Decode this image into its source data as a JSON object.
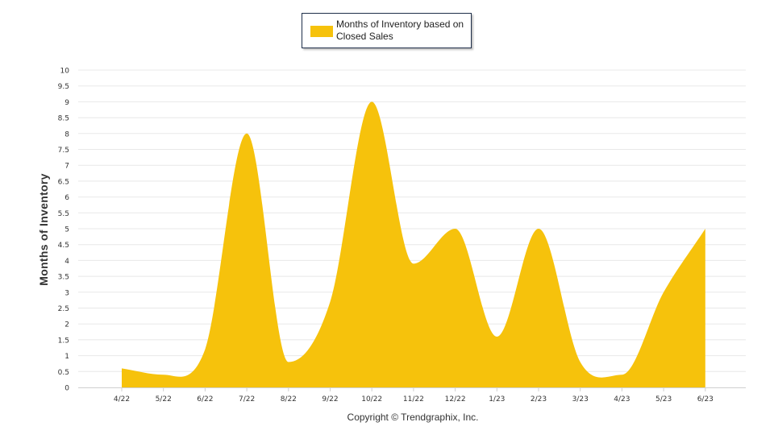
{
  "chart_data": {
    "type": "area",
    "legend": {
      "label": "Months of Inventory based on Closed Sales",
      "position": "top-center"
    },
    "ylabel": "Months of Inventory",
    "xlabel": "",
    "credit": "Copyright © Trendgraphix, Inc.",
    "ylim": [
      0,
      10
    ],
    "y_ticks": [
      "0",
      "0.5",
      "1",
      "1.5",
      "2",
      "2.5",
      "3",
      "3.5",
      "4",
      "4.5",
      "5",
      "5.5",
      "6",
      "6.5",
      "7",
      "7.5",
      "8",
      "8.5",
      "9",
      "9.5",
      "10"
    ],
    "grid": true,
    "categories": [
      "4/22",
      "5/22",
      "6/22",
      "7/22",
      "8/22",
      "9/22",
      "10/22",
      "11/22",
      "12/22",
      "1/23",
      "2/23",
      "3/23",
      "4/23",
      "5/23",
      "6/23"
    ],
    "series": [
      {
        "name": "Months of Inventory based on Closed Sales",
        "values": [
          0.6,
          0.4,
          1.2,
          8.0,
          0.8,
          2.7,
          9.0,
          3.9,
          5.0,
          1.6,
          5.0,
          0.8,
          0.4,
          3.0,
          5.0
        ]
      }
    ],
    "colors": {
      "fill": "#F6C20C",
      "grid": "#E8E8E8",
      "axis_text": "#333333"
    }
  }
}
